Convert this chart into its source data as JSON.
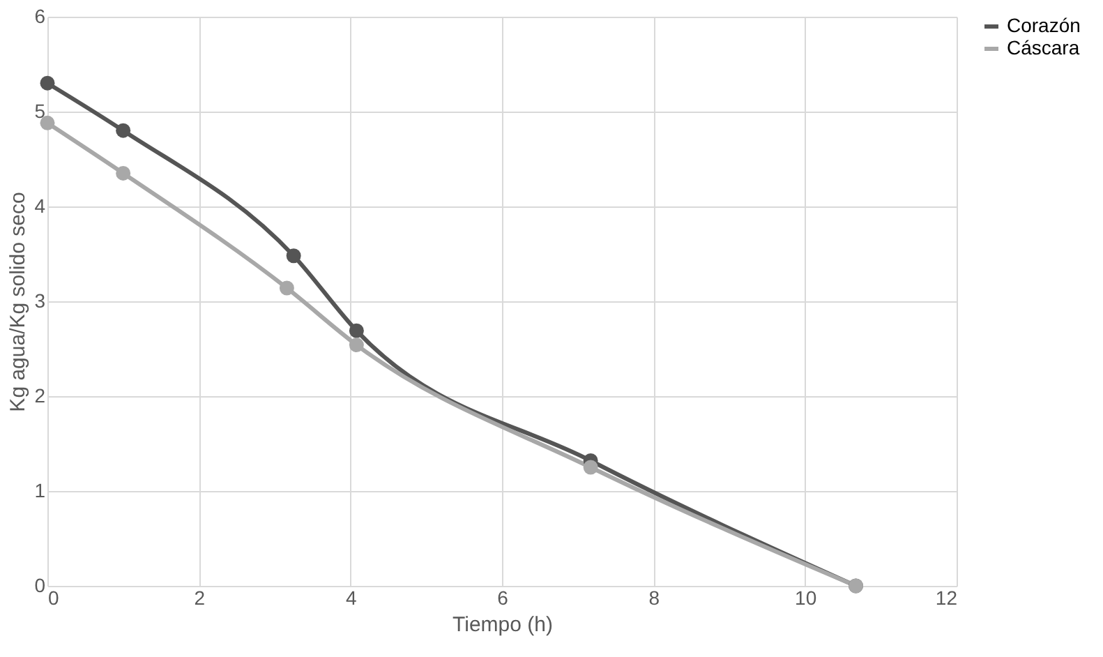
{
  "chart_data": {
    "type": "line",
    "xlabel": "Tiempo (h)",
    "ylabel": "Kg agua/Kg solido seco",
    "xlim": [
      0,
      12
    ],
    "xticks": [
      0,
      2,
      4,
      6,
      8,
      10,
      12
    ],
    "ylim": [
      0,
      6
    ],
    "yticks": [
      0,
      1,
      2,
      3,
      4,
      5,
      6
    ],
    "grid": true,
    "legend": "right",
    "marker": "circle",
    "line_style": "solid",
    "series": [
      {
        "name": "Corazón",
        "color": "#555555",
        "x": [
          0,
          1,
          3.25,
          4.08,
          7.17,
          10.67
        ],
        "values": [
          5.3,
          4.8,
          3.48,
          2.69,
          1.32,
          0
        ]
      },
      {
        "name": "Cáscara",
        "color": "#a8a8a8",
        "x": [
          0,
          1,
          3.16,
          4.08,
          7.17,
          10.67
        ],
        "values": [
          4.88,
          4.35,
          3.14,
          2.54,
          1.25,
          0
        ]
      }
    ]
  }
}
